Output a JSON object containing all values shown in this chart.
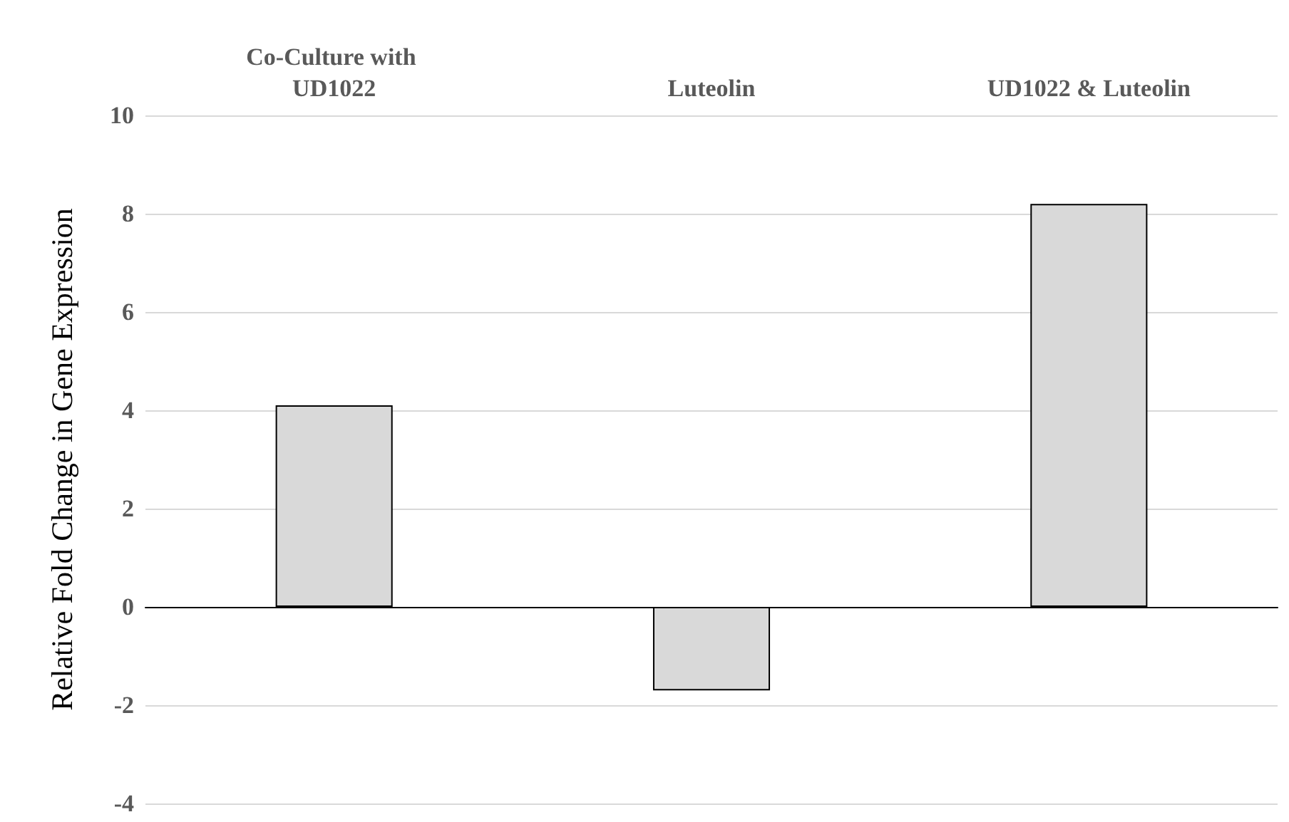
{
  "chart_data": {
    "type": "bar",
    "ylabel": "Relative Fold Change in Gene Expression",
    "categories": [
      "Co-Culture with UD1022",
      "Luteolin",
      "UD1022 & Luteolin"
    ],
    "values": [
      4.1,
      -1.7,
      8.2
    ],
    "color": "#d9d9d9",
    "ylim": [
      -4,
      10
    ],
    "yticks": [
      -4,
      -2,
      0,
      2,
      4,
      6,
      8,
      10
    ],
    "grid": "y"
  }
}
